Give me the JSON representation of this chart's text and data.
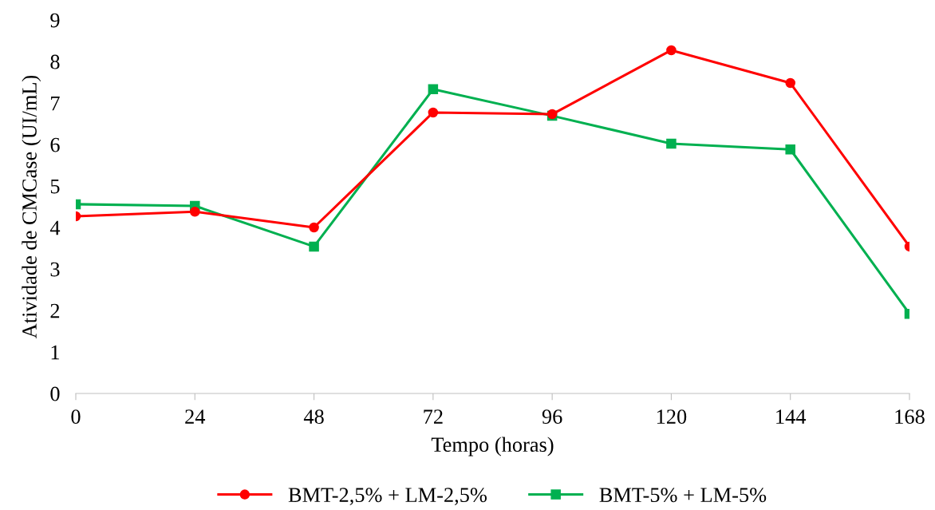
{
  "chart_data": {
    "type": "line",
    "xlabel": "Tempo (horas)",
    "ylabel": "Atividade de CMCase (UI/mL)",
    "x": [
      0,
      24,
      48,
      72,
      96,
      120,
      144,
      168
    ],
    "xlim": [
      0,
      168
    ],
    "xticks": [
      0,
      24,
      48,
      72,
      96,
      120,
      144,
      168
    ],
    "ylim": [
      0,
      9
    ],
    "yticks": [
      0,
      1,
      2,
      3,
      4,
      5,
      6,
      7,
      8,
      9
    ],
    "grid": false,
    "legend": "bottom",
    "series": [
      {
        "name": "BMT-2,5% + LM-2,5%",
        "color": "#ff0000",
        "marker": "circle",
        "values": [
          4.27,
          4.38,
          4.0,
          6.77,
          6.73,
          8.27,
          7.48,
          3.54
        ]
      },
      {
        "name": "BMT-5% + LM-5%",
        "color": "#00b050",
        "marker": "square",
        "values": [
          4.56,
          4.52,
          3.54,
          7.33,
          6.69,
          6.02,
          5.88,
          1.92
        ]
      }
    ]
  }
}
